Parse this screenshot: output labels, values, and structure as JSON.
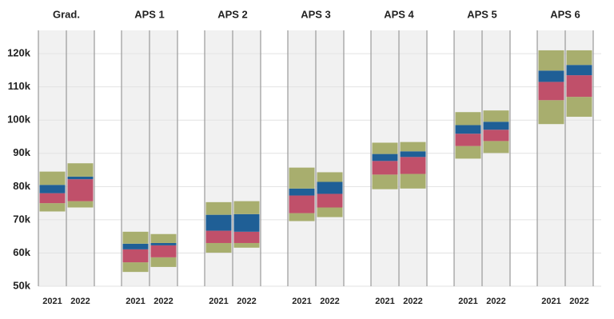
{
  "chart_data": {
    "type": "floating-bar",
    "categories": [
      "Grad.",
      "APS 1",
      "APS 2",
      "APS 3",
      "APS 4",
      "APS 5",
      "APS 6"
    ],
    "years": [
      "2021",
      "2022"
    ],
    "ylim": [
      50,
      127
    ],
    "yticks": [
      {
        "value": 50,
        "label": "50k"
      },
      {
        "value": 60,
        "label": "60k"
      },
      {
        "value": 70,
        "label": "70k"
      },
      {
        "value": 80,
        "label": "80k"
      },
      {
        "value": 90,
        "label": "90k"
      },
      {
        "value": 100,
        "label": "100k"
      },
      {
        "value": 110,
        "label": "110k"
      },
      {
        "value": 120,
        "label": "120k"
      }
    ],
    "grid": true,
    "series": [
      {
        "color": "#a8ae6e",
        "values": [
          [
            [
              72.5,
              75
            ],
            [
              73.7,
              75.6
            ]
          ],
          [
            [
              54.3,
              57.2
            ],
            [
              55.8,
              58.7
            ]
          ],
          [
            [
              60.1,
              63
            ],
            [
              61.6,
              63
            ]
          ],
          [
            [
              69.6,
              72
            ],
            [
              70.8,
              73.7
            ]
          ],
          [
            [
              79.2,
              83.6
            ],
            [
              79.4,
              83.8
            ]
          ],
          [
            [
              88.4,
              92.2
            ],
            [
              90.1,
              93.7
            ]
          ],
          [
            [
              98.8,
              106
            ],
            [
              101,
              107
            ]
          ]
        ]
      },
      {
        "color": "#c0506a",
        "values": [
          [
            [
              75,
              78
            ],
            [
              75.6,
              82.2
            ]
          ],
          [
            [
              57.2,
              61.1
            ],
            [
              58.7,
              62.3
            ]
          ],
          [
            [
              63,
              66.7
            ],
            [
              63,
              66.4
            ]
          ],
          [
            [
              72,
              77.3
            ],
            [
              73.7,
              77.8
            ]
          ],
          [
            [
              83.6,
              87.7
            ],
            [
              83.8,
              88.9
            ]
          ],
          [
            [
              92.2,
              95.9
            ],
            [
              93.7,
              97.1
            ]
          ],
          [
            [
              106,
              111.5
            ],
            [
              107,
              113.5
            ]
          ]
        ]
      },
      {
        "color": "#1f5f96",
        "values": [
          [
            [
              78,
              80.5
            ],
            [
              82.2,
              83
            ]
          ],
          [
            [
              61.1,
              62.8
            ],
            [
              62.3,
              63
            ]
          ],
          [
            [
              66.7,
              71.5
            ],
            [
              66.4,
              71.7
            ]
          ],
          [
            [
              77.3,
              79.4
            ],
            [
              77.8,
              81.4
            ]
          ],
          [
            [
              87.7,
              89.8
            ],
            [
              88.9,
              90.6
            ]
          ],
          [
            [
              95.9,
              98.5
            ],
            [
              97.1,
              99.5
            ]
          ],
          [
            [
              111.5,
              114.9
            ],
            [
              113.5,
              116.6
            ]
          ]
        ]
      },
      {
        "color": "#a8ae6e",
        "values": [
          [
            [
              80.5,
              84.5
            ],
            [
              83,
              87
            ]
          ],
          [
            [
              62.8,
              66.4
            ],
            [
              63,
              65.7
            ]
          ],
          [
            [
              71.5,
              75.3
            ],
            [
              71.7,
              75.6
            ]
          ],
          [
            [
              79.4,
              85.7
            ],
            [
              81.4,
              84.3
            ]
          ],
          [
            [
              89.8,
              93.2
            ],
            [
              90.6,
              93.4
            ]
          ],
          [
            [
              98.5,
              102.4
            ],
            [
              99.5,
              102.9
            ]
          ],
          [
            [
              114.9,
              121
            ],
            [
              116.6,
              121
            ]
          ]
        ]
      }
    ]
  }
}
